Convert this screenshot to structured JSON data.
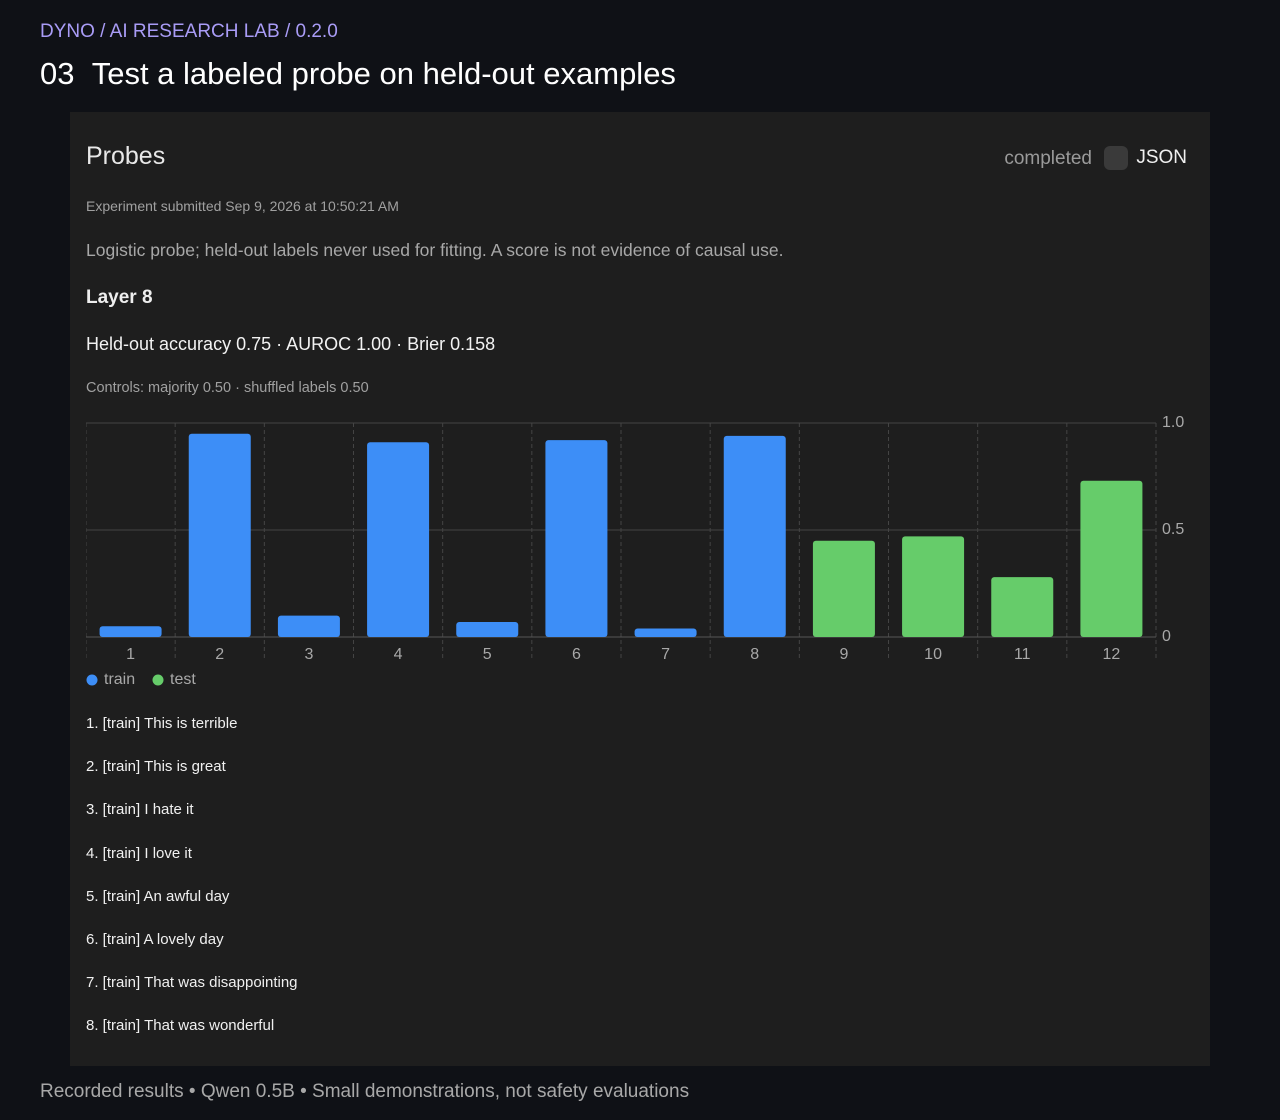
{
  "header": {
    "breadcrumb": "DYNO / AI RESEARCH LAB / 0.2.0",
    "number": "03",
    "title": "Test a labeled probe on held-out examples"
  },
  "panel": {
    "title": "Probes",
    "status": "completed",
    "toggle_label": "JSON",
    "submitted": "Experiment submitted Sep 9, 2026 at 10:50:21 AM",
    "description": "Logistic probe; held-out labels never used for fitting. A score is not evidence of causal use.",
    "layer": "Layer 8",
    "metrics": "Held-out accuracy 0.75 · AUROC 1.00 · Brier 0.158",
    "controls": "Controls: majority 0.50 · shuffled labels 0.50"
  },
  "chart_data": {
    "type": "bar",
    "categories": [
      "1",
      "2",
      "3",
      "4",
      "5",
      "6",
      "7",
      "8",
      "9",
      "10",
      "11",
      "12"
    ],
    "series": [
      {
        "name": "train",
        "color": "#3d8ef7",
        "values": [
          0.05,
          0.95,
          0.1,
          0.91,
          0.07,
          0.92,
          0.04,
          0.94,
          null,
          null,
          null,
          null
        ]
      },
      {
        "name": "test",
        "color": "#66cc6a",
        "values": [
          null,
          null,
          null,
          null,
          null,
          null,
          null,
          null,
          0.45,
          0.47,
          0.28,
          0.73
        ]
      }
    ],
    "ylim": [
      0,
      1
    ],
    "yticks": [
      0,
      0.5,
      {
        "value": 1,
        "label": "1.0"
      }
    ],
    "grid": true,
    "legend": "bottom-left"
  },
  "examples": [
    "1. [train] This is terrible",
    "2. [train] This is great",
    "3. [train] I hate it",
    "4. [train] I love it",
    "5. [train] An awful day",
    "6. [train] A lovely day",
    "7. [train] That was disappointing",
    "8. [train] That was wonderful"
  ],
  "footer": "Recorded results • Qwen 0.5B • Small demonstrations, not safety evaluations"
}
